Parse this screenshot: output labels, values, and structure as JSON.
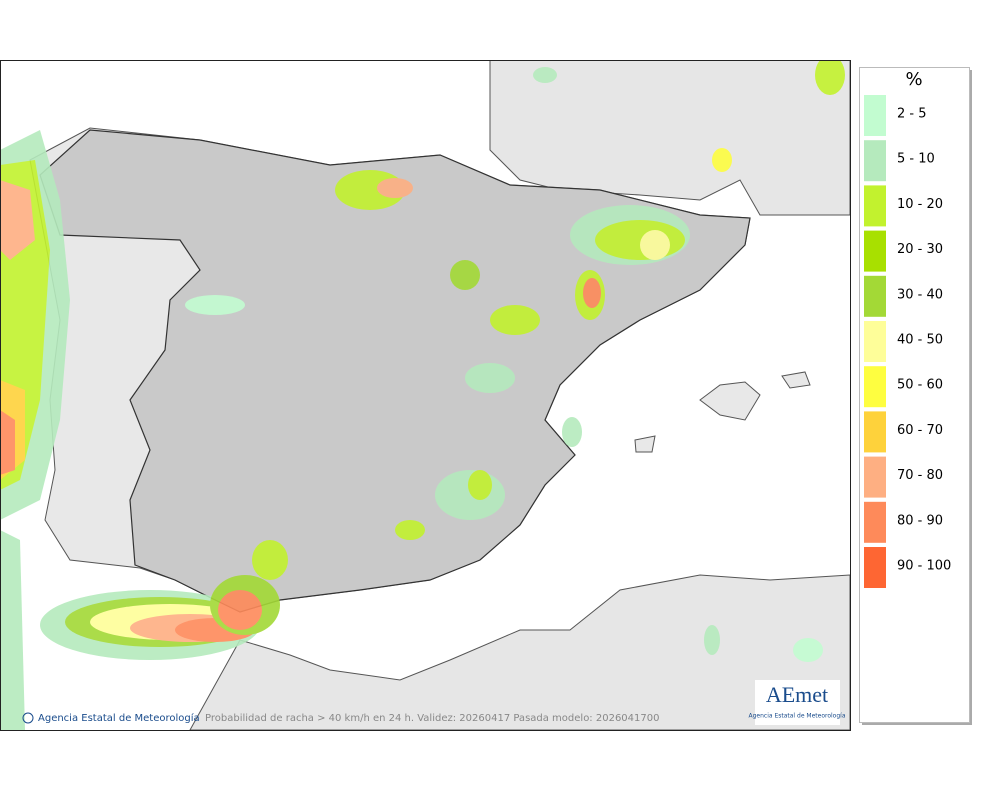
{
  "map": {
    "credit": "Agencia Estatal de Meteorología",
    "caption": "Probabilidad de racha > 40 km/h en 24 h. Validez: 20260417 Pasada modelo: 2026041700",
    "logo": {
      "name": "AEmet",
      "subtitle": "Agencia Estatal de Meteorología"
    }
  },
  "legend": {
    "title": "%",
    "items": [
      {
        "label": "2 - 5",
        "color": "#c2fcd0"
      },
      {
        "label": "5 - 10",
        "color": "#b5eabd"
      },
      {
        "label": "10 - 20",
        "color": "#c2f22e"
      },
      {
        "label": "20 - 30",
        "color": "#a8e000"
      },
      {
        "label": "30 - 40",
        "color": "#a3d936"
      },
      {
        "label": "40 - 50",
        "color": "#fefe99"
      },
      {
        "label": "50 - 60",
        "color": "#fefe40"
      },
      {
        "label": "60 - 70",
        "color": "#fed23b"
      },
      {
        "label": "70 - 80",
        "color": "#feaf82"
      },
      {
        "label": "80 - 90",
        "color": "#fe8a5a"
      },
      {
        "label": "90 - 100",
        "color": "#fe6633"
      }
    ]
  }
}
